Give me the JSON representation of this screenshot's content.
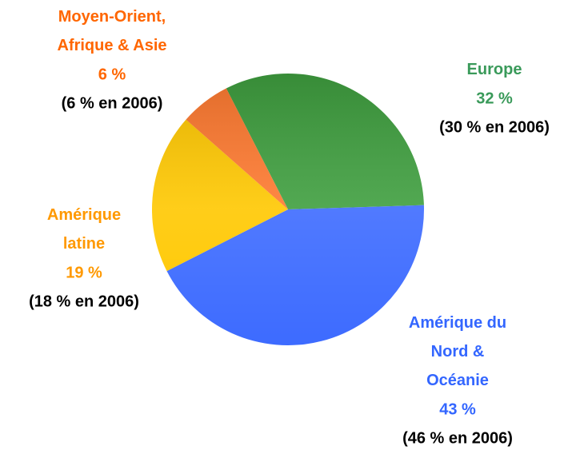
{
  "chart_data": {
    "type": "pie",
    "categories": [
      "Europe",
      "Amérique du\nNord &\nOcéanie",
      "Amérique\nlatine",
      "Moyen-Orient,\nAfrique & Asie"
    ],
    "values": [
      32,
      43,
      19,
      6
    ],
    "value_labels": [
      "32 %",
      "43 %",
      "19 %",
      "6 %"
    ],
    "previous_labels": [
      "(30 % en 2006)",
      "(46 % en 2006)",
      "(18 % en 2006)",
      "(6 % en 2006)"
    ],
    "colors": [
      "#3f9f3f",
      "#3d6bff",
      "#ffc800",
      "#ff7a30"
    ],
    "label_colors": [
      "#3a9a5a",
      "#3366ff",
      "#ff9900",
      "#ff6600"
    ]
  }
}
